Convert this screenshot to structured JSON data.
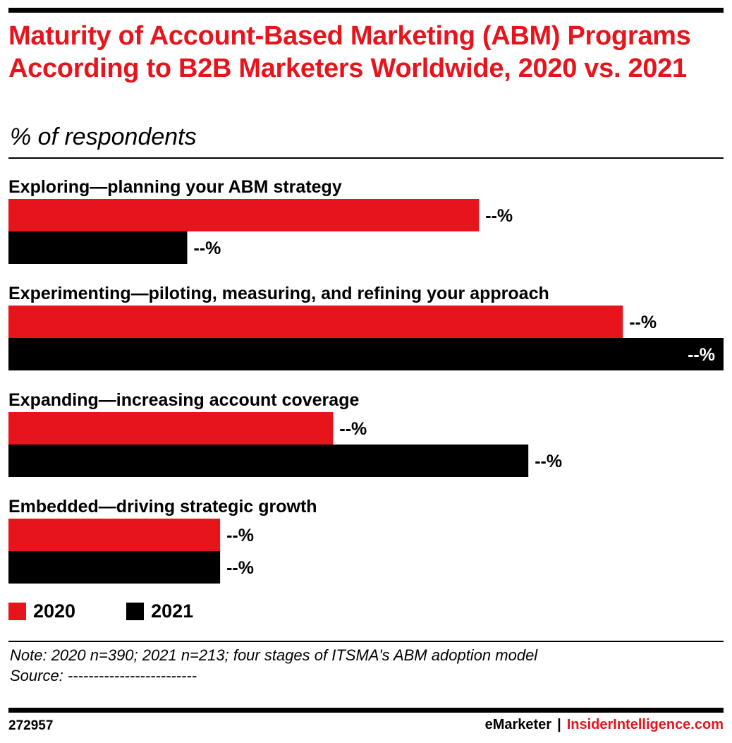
{
  "header": {
    "title": "Maturity of Account-Based Marketing (ABM) Programs According to B2B Marketers Worldwide, 2020 vs. 2021",
    "subtitle": "% of respondents"
  },
  "colors": {
    "series_2020": "#e8141c",
    "series_2021": "#000000"
  },
  "chart_data": {
    "type": "bar",
    "orientation": "horizontal",
    "categories": [
      "Exploring—planning your ABM strategy",
      "Experimenting—piloting, measuring, and refining your approach",
      "Expanding—increasing account coverage",
      "Embedded—driving strategic growth"
    ],
    "series": [
      {
        "name": "2020",
        "color": "#e8141c",
        "values": [
          22.9,
          29.9,
          15.8,
          10.3
        ],
        "labels": [
          "--%",
          "--%",
          "--%",
          "--%"
        ]
      },
      {
        "name": "2021",
        "color": "#000000",
        "values": [
          8.7,
          34.8,
          25.3,
          10.3
        ],
        "labels": [
          "--%",
          "--%",
          "--%",
          "--%"
        ]
      }
    ],
    "xlim": [
      0,
      34.8
    ],
    "grid": false,
    "legend": "bottom-left"
  },
  "legend": {
    "items": [
      {
        "label": "2020"
      },
      {
        "label": "2021"
      }
    ]
  },
  "footer": {
    "note": "Note: 2020 n=390; 2021 n=213; four stages of ITSMA's ABM adoption model",
    "source": "Source: -------------------------",
    "chart_id": "272957",
    "brand_emarketer": "eMarketer",
    "brand_separator": "|",
    "brand_insider": "InsiderIntelligence.com"
  }
}
